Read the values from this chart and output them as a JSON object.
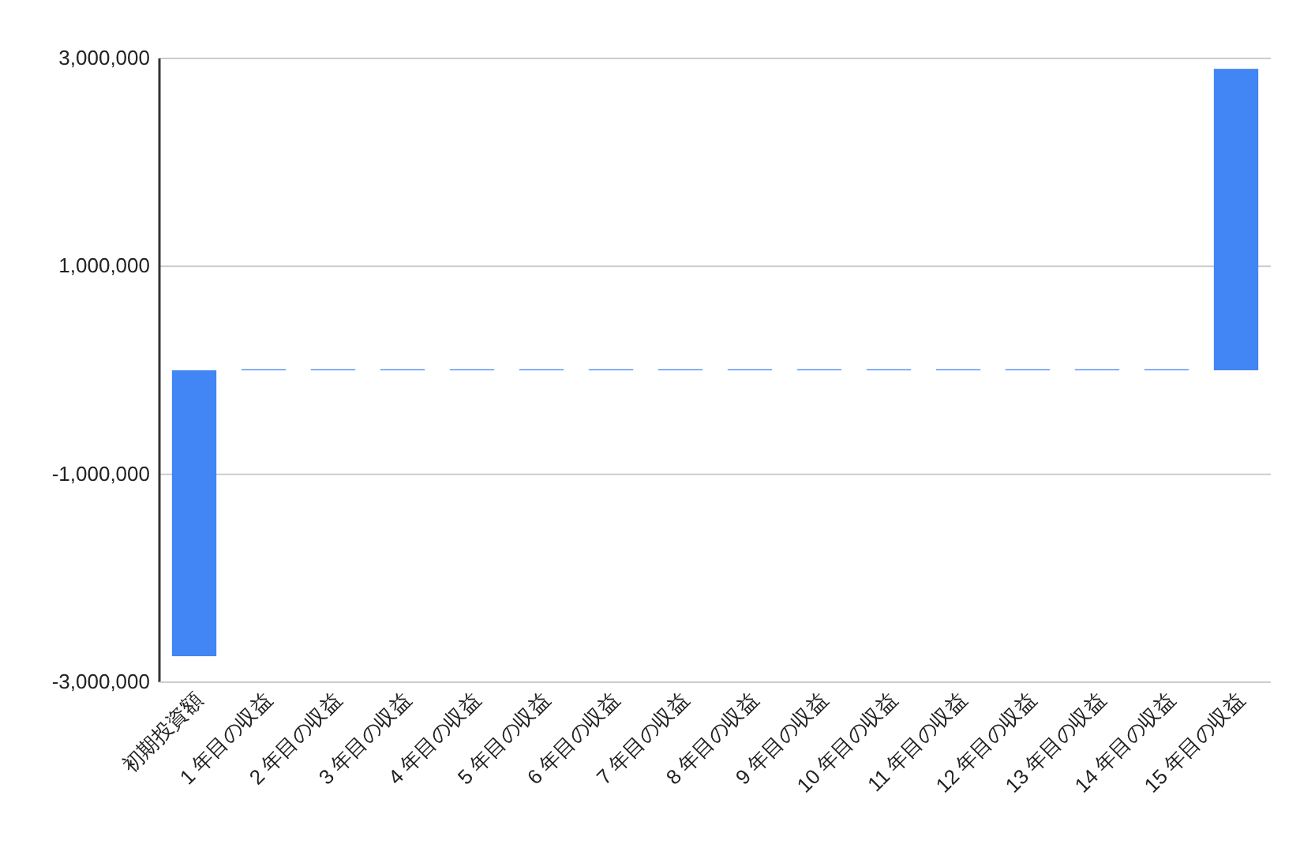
{
  "chart_data": {
    "type": "bar",
    "categories": [
      "初期投資額",
      "1 年目の収益",
      "2 年目の収益",
      "3 年目の収益",
      "4 年目の収益",
      "5 年目の収益",
      "6 年目の収益",
      "7 年目の収益",
      "8 年目の収益",
      "9 年目の収益",
      "10 年目の収益",
      "11 年目の収益",
      "12 年目の収益",
      "13 年目の収益",
      "14 年目の収益",
      "15 年目の収益"
    ],
    "values": [
      -2750000,
      10000,
      10000,
      10000,
      10000,
      10000,
      10000,
      10000,
      10000,
      10000,
      10000,
      10000,
      10000,
      10000,
      10000,
      2900000
    ],
    "color": "#4285f4",
    "ylim": [
      -3000000,
      3000000
    ],
    "yticks": [
      {
        "value": -3000000,
        "label": "-3,000,000"
      },
      {
        "value": -1000000,
        "label": "-1,000,000"
      },
      {
        "value": 1000000,
        "label": "1,000,000"
      },
      {
        "value": 3000000,
        "label": "3,000,000"
      }
    ],
    "grid": "y"
  }
}
